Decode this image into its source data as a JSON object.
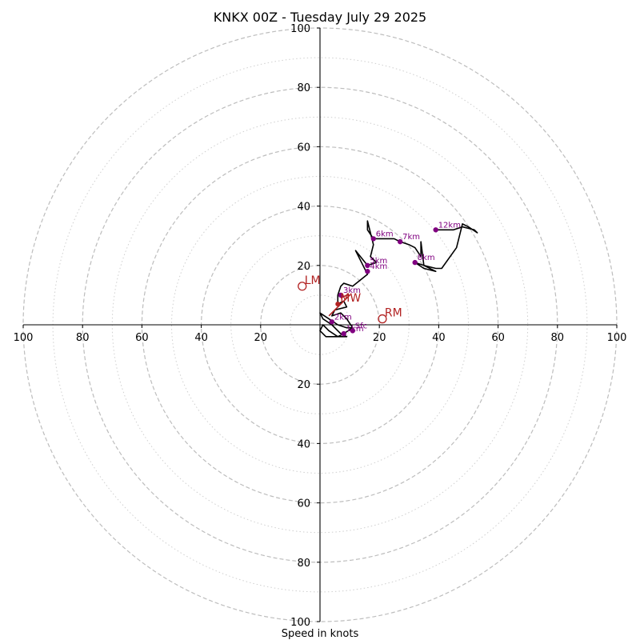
{
  "chart_data": {
    "type": "hodograph",
    "title": "KNKX 00Z - Tuesday July 29 2025",
    "xlabel": "Speed in knots",
    "ring_major": [
      20,
      40,
      60,
      80,
      100
    ],
    "ring_minor": [
      10,
      30,
      50,
      70,
      90
    ],
    "x_tick_labels": [
      "100",
      "80",
      "60",
      "40",
      "20",
      "20",
      "40",
      "60",
      "80",
      "100"
    ],
    "x_tick_values": [
      -100,
      -80,
      -60,
      -40,
      -20,
      20,
      40,
      60,
      80,
      100
    ],
    "y_tick_labels": [
      "100",
      "80",
      "60",
      "40",
      "20",
      "20",
      "40",
      "60",
      "80",
      "100"
    ],
    "y_tick_values": [
      100,
      80,
      60,
      40,
      20,
      -20,
      -40,
      -60,
      -80,
      -100
    ],
    "xlim": [
      -100,
      100
    ],
    "ylim": [
      -100,
      100
    ],
    "colors": {
      "hodograph": "#000000",
      "height_marker": "#800080",
      "motion": "#b22222",
      "grid": "#bdbdbd"
    },
    "hodograph_trace": [
      [
        11,
        -1
      ],
      [
        8,
        -3
      ],
      [
        6,
        -4
      ],
      [
        3,
        -2
      ],
      [
        1,
        0
      ],
      [
        0,
        -2
      ],
      [
        2,
        -4
      ],
      [
        6,
        -4
      ],
      [
        9,
        -4
      ],
      [
        7,
        -3
      ],
      [
        4,
        0
      ],
      [
        1,
        2
      ],
      [
        0,
        4
      ],
      [
        3,
        2
      ],
      [
        6,
        0
      ],
      [
        9,
        -1
      ],
      [
        11,
        -1
      ],
      [
        9,
        2
      ],
      [
        7,
        4
      ],
      [
        4,
        3
      ],
      [
        5,
        5
      ],
      [
        9,
        6
      ],
      [
        8,
        8
      ],
      [
        6,
        7
      ],
      [
        6,
        10
      ],
      [
        7,
        13
      ],
      [
        8,
        14
      ],
      [
        11,
        13
      ],
      [
        16,
        17
      ],
      [
        12,
        25
      ],
      [
        16,
        20
      ],
      [
        19,
        21
      ],
      [
        17,
        23
      ],
      [
        18,
        27
      ],
      [
        16,
        35
      ],
      [
        16,
        32
      ],
      [
        18,
        29
      ],
      [
        21,
        29
      ],
      [
        25,
        29
      ],
      [
        27,
        28
      ],
      [
        30,
        27
      ],
      [
        32,
        26
      ],
      [
        34,
        23
      ],
      [
        34,
        28
      ],
      [
        35,
        20
      ],
      [
        39,
        18
      ],
      [
        35,
        19
      ],
      [
        32,
        21
      ],
      [
        35,
        20
      ],
      [
        39,
        19
      ],
      [
        41,
        19
      ],
      [
        46,
        26
      ],
      [
        48,
        34
      ],
      [
        50,
        33
      ],
      [
        53,
        31
      ],
      [
        52,
        32
      ],
      [
        48,
        33
      ],
      [
        45,
        32
      ],
      [
        42,
        32
      ],
      [
        39,
        32
      ]
    ],
    "height_markers": [
      {
        "label": "Sfc",
        "x": 11,
        "y": -2
      },
      {
        "label": "1km",
        "x": 8,
        "y": -3
      },
      {
        "label": "2km",
        "x": 4,
        "y": 1
      },
      {
        "label": "3km",
        "x": 7,
        "y": 10
      },
      {
        "label": "4km",
        "x": 16,
        "y": 18
      },
      {
        "label": "5km",
        "x": 16,
        "y": 20
      },
      {
        "label": "6km",
        "x": 18,
        "y": 29
      },
      {
        "label": "7km",
        "x": 27,
        "y": 28
      },
      {
        "label": "8km",
        "x": 32,
        "y": 21
      },
      {
        "label": "12km",
        "x": 39,
        "y": 32
      }
    ],
    "mean_wind_line": [
      [
        7,
        9
      ],
      [
        9,
        10
      ],
      [
        10,
        10
      ],
      [
        8,
        8
      ],
      [
        5,
        5
      ],
      [
        3,
        3
      ]
    ],
    "storm_motions": [
      {
        "label": "LM",
        "x": -6,
        "y": 13,
        "style": "open-circle"
      },
      {
        "label": "MW",
        "x": 6,
        "y": 7,
        "style": "filled-dot"
      },
      {
        "label": "RM",
        "x": 21,
        "y": 2,
        "style": "open-circle"
      }
    ]
  }
}
